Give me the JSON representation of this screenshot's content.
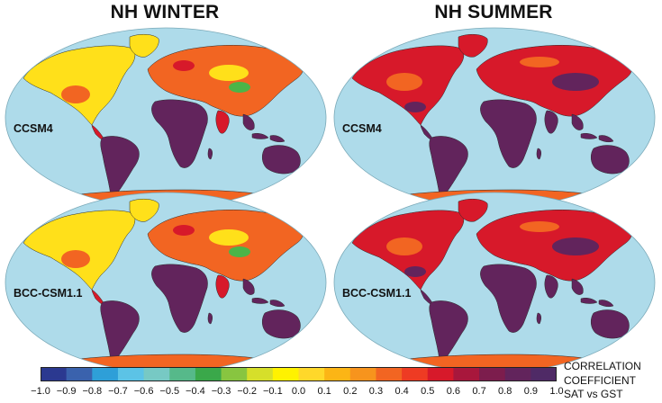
{
  "columns": [
    {
      "title": "NH WINTER"
    },
    {
      "title": "NH SUMMER"
    }
  ],
  "panels": [
    {
      "model": "CCSM4",
      "season": "winter",
      "row": 0,
      "col": 0
    },
    {
      "model": "CCSM4",
      "season": "summer",
      "row": 0,
      "col": 1
    },
    {
      "model": "BCC-CSM1.1",
      "season": "winter",
      "row": 1,
      "col": 0
    },
    {
      "model": "BCC-CSM1.1",
      "season": "summer",
      "row": 1,
      "col": 1
    }
  ],
  "colorbar": {
    "title_lines": [
      "CORRELATION",
      "COEFFICIENT",
      "SAT vs GST"
    ],
    "ticks": [
      "−1.0",
      "−0.9",
      "−0.8",
      "−0.7",
      "−0.6",
      "−0.5",
      "−0.4",
      "−0.3",
      "−0.2",
      "−0.1",
      "0.0",
      "0.1",
      "0.2",
      "0.3",
      "0.4",
      "0.5",
      "0.6",
      "0.7",
      "0.8",
      "0.9",
      "1.0"
    ],
    "range": [
      -1.0,
      1.0
    ],
    "colors": [
      "#2b3990",
      "#3a62ad",
      "#2e9fd8",
      "#5cc3e6",
      "#77c9c4",
      "#56b98a",
      "#3aa84a",
      "#88c540",
      "#d6df2a",
      "#fff200",
      "#ffd82a",
      "#fcb515",
      "#f7941d",
      "#f26522",
      "#ee3b23",
      "#d7192a",
      "#a8173c",
      "#7c1d4d",
      "#62245c",
      "#4f2a66"
    ]
  },
  "colors": {
    "ocean": "#aedbea",
    "land_deep": "#62245c",
    "land_red": "#d7192a",
    "land_orange": "#f26522",
    "land_yellow": "#ffe01a",
    "land_green": "#4bb548"
  }
}
